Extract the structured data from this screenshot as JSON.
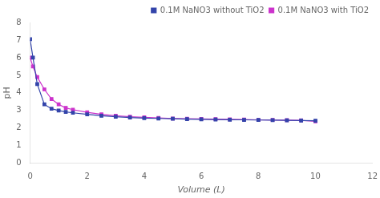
{
  "chart_data": {
    "type": "line",
    "xlabel": "Volume (L)",
    "ylabel": "pH",
    "xlim": [
      0,
      12
    ],
    "ylim": [
      0,
      8
    ],
    "xticks": [
      0,
      2,
      4,
      6,
      8,
      10,
      12
    ],
    "yticks": [
      0,
      1,
      2,
      3,
      4,
      5,
      6,
      7,
      8
    ],
    "grid": false,
    "legend": "upper right",
    "x": [
      0,
      0.1,
      0.25,
      0.5,
      0.75,
      1.0,
      1.25,
      1.5,
      2.0,
      2.5,
      3.0,
      3.5,
      4.0,
      4.5,
      5.0,
      5.5,
      6.0,
      6.5,
      7.0,
      7.5,
      8.0,
      8.5,
      9.0,
      9.5,
      10.0
    ],
    "series": [
      {
        "name": "0.1M NaNO3 without TiO2",
        "color": "#3344aa",
        "marker": "square",
        "values": [
          7.05,
          6.0,
          4.5,
          3.35,
          3.1,
          3.0,
          2.92,
          2.87,
          2.78,
          2.7,
          2.65,
          2.6,
          2.57,
          2.55,
          2.53,
          2.51,
          2.5,
          2.49,
          2.48,
          2.47,
          2.46,
          2.45,
          2.44,
          2.43,
          2.42
        ]
      },
      {
        "name": "0.1M NaNO3 with TiO2",
        "color": "#cc33cc",
        "marker": "square",
        "values": [
          6.0,
          5.5,
          4.9,
          4.2,
          3.65,
          3.35,
          3.15,
          3.05,
          2.9,
          2.78,
          2.7,
          2.65,
          2.61,
          2.58,
          2.55,
          2.53,
          2.52,
          2.51,
          2.5,
          2.49,
          2.47,
          2.46,
          2.45,
          2.44,
          2.38
        ]
      }
    ]
  }
}
